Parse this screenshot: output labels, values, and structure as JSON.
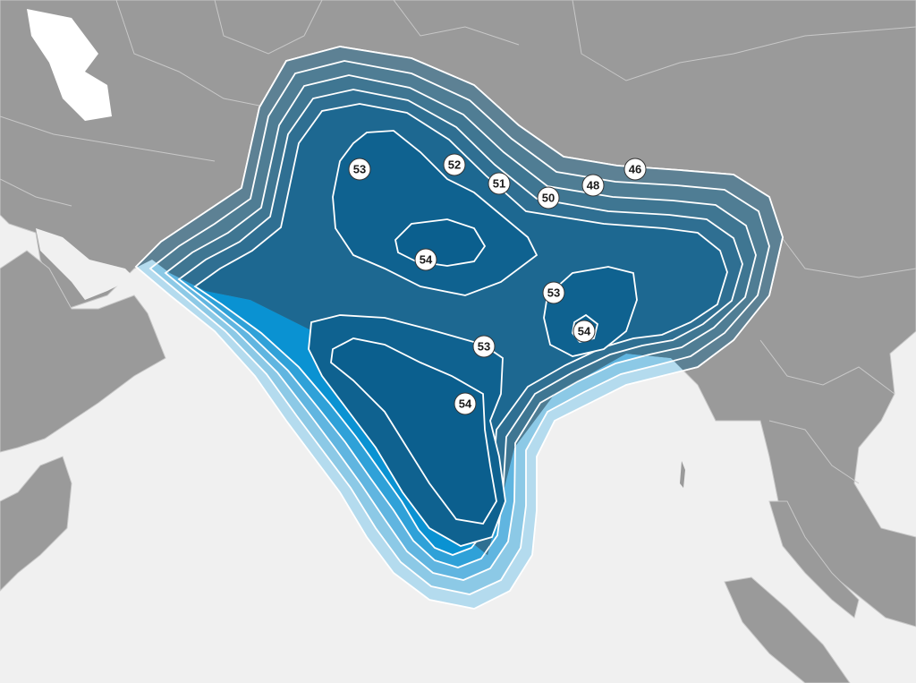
{
  "map": {
    "colors": {
      "sea": "#f0f0f0",
      "land": "#9a9a9a",
      "land_border": "#c8c8c8",
      "contour_line": "#ffffff",
      "label_fill": "#ffffff",
      "label_stroke": "#333333",
      "band_land": [
        "#5d8194",
        "#4f7d94",
        "#3f7692",
        "#2f6f92",
        "#1d6891",
        "#0f6290"
      ],
      "band_sea": [
        "#b4dbee",
        "#8cc9e6",
        "#60b5e0",
        "#2fa1d8",
        "#0a92d2",
        "#0a85c6"
      ],
      "peak": "#0b5f8e"
    },
    "contour_labels": [
      {
        "id": "46",
        "text": "46"
      },
      {
        "id": "48",
        "text": "48"
      },
      {
        "id": "50",
        "text": "50"
      },
      {
        "id": "51",
        "text": "51"
      },
      {
        "id": "52",
        "text": "52"
      },
      {
        "id": "53-north",
        "text": "53"
      },
      {
        "id": "54-north",
        "text": "54"
      },
      {
        "id": "53-east",
        "text": "53"
      },
      {
        "id": "54-east",
        "text": "54"
      },
      {
        "id": "53-central",
        "text": "53"
      },
      {
        "id": "54-south",
        "text": "54"
      }
    ]
  }
}
